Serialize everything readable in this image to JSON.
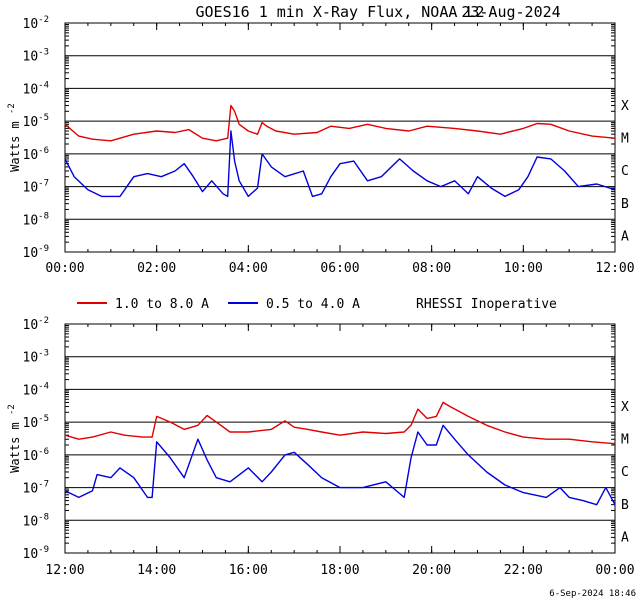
{
  "header": {
    "title": "GOES16 1 min X-Ray Flux, NOAA L2",
    "date": "23-Aug-2024"
  },
  "legend": {
    "long_label": "1.0 to 8.0 A",
    "short_label": "0.5 to 4.0 A",
    "note": "RHESSI Inoperative"
  },
  "footer": {
    "timestamp": "6-Sep-2024 18:46"
  },
  "colors": {
    "long": "#e00000",
    "short": "#0000e0",
    "grid": "#000000"
  },
  "chart_data": [
    {
      "type": "line",
      "ylabel_base": "Watts m",
      "ylabel_exp": "-2",
      "yscale": "log",
      "ylim_exp": [
        -9,
        -2
      ],
      "ytick_exps": [
        -9,
        -8,
        -7,
        -6,
        -5,
        -4,
        -3,
        -2
      ],
      "flare_classes": [
        "A",
        "B",
        "C",
        "M",
        "X"
      ],
      "xlim_hours": [
        0,
        12
      ],
      "xtick_labels": [
        "00:00",
        "02:00",
        "04:00",
        "06:00",
        "08:00",
        "10:00",
        "12:00"
      ],
      "series": [
        {
          "name": "1.0 to 8.0 A",
          "x_hours": [
            0,
            0.3,
            0.6,
            1.0,
            1.5,
            2.0,
            2.4,
            2.7,
            3.0,
            3.3,
            3.55,
            3.62,
            3.7,
            3.8,
            4.0,
            4.2,
            4.3,
            4.4,
            4.6,
            5.0,
            5.5,
            5.8,
            6.2,
            6.6,
            7.0,
            7.5,
            7.9,
            8.5,
            9.0,
            9.5,
            10.0,
            10.3,
            10.6,
            11.0,
            11.5,
            12.0
          ],
          "values": [
            8e-06,
            3.5e-06,
            2.8e-06,
            2.5e-06,
            4e-06,
            5e-06,
            4.5e-06,
            5.5e-06,
            3e-06,
            2.5e-06,
            3e-06,
            3e-05,
            2e-05,
            8e-06,
            5e-06,
            4e-06,
            9e-06,
            7e-06,
            5e-06,
            4e-06,
            4.5e-06,
            7e-06,
            6e-06,
            8e-06,
            6e-06,
            5e-06,
            7e-06,
            6e-06,
            5e-06,
            4e-06,
            6e-06,
            8.5e-06,
            8e-06,
            5e-06,
            3.5e-06,
            3e-06
          ]
        },
        {
          "name": "0.5 to 4.0 A",
          "x_hours": [
            0,
            0.2,
            0.5,
            0.8,
            1.2,
            1.5,
            1.8,
            2.1,
            2.4,
            2.6,
            2.8,
            3.0,
            3.2,
            3.45,
            3.55,
            3.62,
            3.7,
            3.8,
            4.0,
            4.2,
            4.3,
            4.5,
            4.8,
            5.2,
            5.4,
            5.6,
            5.8,
            6.0,
            6.3,
            6.6,
            6.9,
            7.3,
            7.6,
            7.9,
            8.2,
            8.5,
            8.8,
            9.0,
            9.3,
            9.6,
            9.9,
            10.1,
            10.3,
            10.6,
            10.9,
            11.2,
            11.6,
            12.0
          ],
          "values": [
            7e-07,
            2e-07,
            8e-08,
            5e-08,
            5e-08,
            2e-07,
            2.5e-07,
            2e-07,
            3e-07,
            5e-07,
            2e-07,
            7e-08,
            1.5e-07,
            6e-08,
            5e-08,
            5e-06,
            6e-07,
            1.5e-07,
            5e-08,
            9e-08,
            1e-06,
            4e-07,
            2e-07,
            3e-07,
            5e-08,
            6e-08,
            2e-07,
            5e-07,
            6e-07,
            1.5e-07,
            2e-07,
            7e-07,
            3e-07,
            1.5e-07,
            1e-07,
            1.5e-07,
            6e-08,
            2e-07,
            9e-08,
            5e-08,
            8e-08,
            2e-07,
            8e-07,
            7e-07,
            3e-07,
            1e-07,
            1.2e-07,
            8e-08
          ]
        }
      ]
    },
    {
      "type": "line",
      "ylabel_base": "Watts m",
      "ylabel_exp": "-2",
      "yscale": "log",
      "ylim_exp": [
        -9,
        -2
      ],
      "ytick_exps": [
        -9,
        -8,
        -7,
        -6,
        -5,
        -4,
        -3,
        -2
      ],
      "flare_classes": [
        "A",
        "B",
        "C",
        "M",
        "X"
      ],
      "xlim_hours": [
        12,
        24
      ],
      "xtick_labels": [
        "12:00",
        "14:00",
        "16:00",
        "18:00",
        "20:00",
        "22:00",
        "00:00"
      ],
      "series": [
        {
          "name": "1.0 to 8.0 A",
          "x_hours": [
            12,
            12.3,
            12.6,
            13.0,
            13.3,
            13.7,
            13.9,
            14.0,
            14.3,
            14.6,
            14.9,
            15.1,
            15.3,
            15.6,
            16.0,
            16.5,
            16.8,
            17.0,
            17.3,
            17.6,
            18.0,
            18.5,
            19.0,
            19.4,
            19.55,
            19.7,
            19.9,
            20.1,
            20.25,
            20.4,
            20.8,
            21.2,
            21.6,
            22.0,
            22.5,
            23.0,
            23.5,
            24.0
          ],
          "values": [
            4e-06,
            3e-06,
            3.5e-06,
            5e-06,
            4e-06,
            3.5e-06,
            3.5e-06,
            1.5e-05,
            1e-05,
            6e-06,
            8e-06,
            1.6e-05,
            1e-05,
            5e-06,
            5e-06,
            6e-06,
            1.1e-05,
            7e-06,
            6e-06,
            5e-06,
            4e-06,
            5e-06,
            4.5e-06,
            5e-06,
            8e-06,
            2.5e-05,
            1.3e-05,
            1.5e-05,
            4e-05,
            3e-05,
            1.5e-05,
            8e-06,
            5e-06,
            3.5e-06,
            3e-06,
            3e-06,
            2.5e-06,
            2.2e-06
          ]
        },
        {
          "name": "0.5 to 4.0 A",
          "x_hours": [
            12,
            12.3,
            12.6,
            12.7,
            13.0,
            13.2,
            13.5,
            13.8,
            13.9,
            14.0,
            14.3,
            14.6,
            14.9,
            15.1,
            15.3,
            15.6,
            16.0,
            16.3,
            16.5,
            16.8,
            17.0,
            17.3,
            17.6,
            18.0,
            18.5,
            19.0,
            19.4,
            19.55,
            19.7,
            19.9,
            20.1,
            20.25,
            20.5,
            20.8,
            21.2,
            21.6,
            22.0,
            22.5,
            22.8,
            23.0,
            23.3,
            23.6,
            23.8,
            24.0
          ],
          "values": [
            8e-08,
            5e-08,
            8e-08,
            2.5e-07,
            2e-07,
            4e-07,
            2e-07,
            5e-08,
            5e-08,
            2.5e-06,
            8e-07,
            2e-07,
            3e-06,
            7e-07,
            2e-07,
            1.5e-07,
            4e-07,
            1.5e-07,
            3e-07,
            1e-06,
            1.2e-06,
            5e-07,
            2e-07,
            1e-07,
            1e-07,
            1.5e-07,
            5e-08,
            8e-07,
            5e-06,
            2e-06,
            2e-06,
            8e-06,
            3e-06,
            1e-06,
            3e-07,
            1.2e-07,
            7e-08,
            5e-08,
            1e-07,
            5e-08,
            4e-08,
            3e-08,
            1e-07,
            3e-08
          ]
        }
      ]
    }
  ]
}
